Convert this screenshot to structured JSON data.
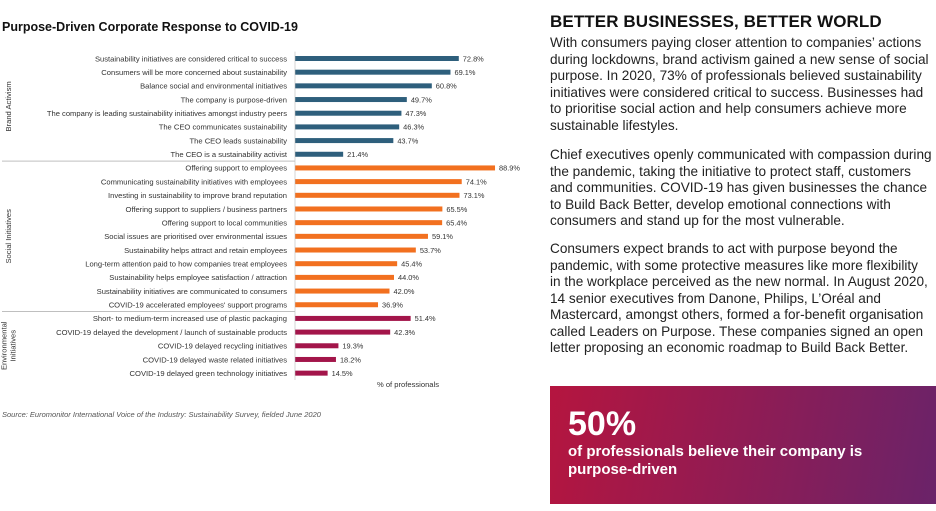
{
  "chart_title": "Purpose-Driven Corporate Response to COVID-19",
  "source": "Source: Euromonitor International Voice of the Industry: Sustainability Survey, fielded June 2020",
  "side": {
    "title": "BETTER BUSINESSES, BETTER WORLD",
    "paragraphs": [
      "With consumers paying closer attention to companies’ actions during lockdowns, brand activism gained a new sense of social purpose. In 2020, 73% of professionals believed sustainability initiatives were considered critical to success. Businesses had to prioritise social action and help consumers achieve more sustainable lifestyles.",
      "Chief executives openly communicated with compassion during the pandemic, taking the initiative to protect staff, customers and communities. COVID-19 has given businesses the chance to Build Back Better, develop emotional connections with consumers and stand up for the most vulnerable.",
      "Consumers expect brands to act with purpose beyond the pandemic, with some protective measures like more flexibility in the workplace perceived as the new normal. In August 2020, 14 senior executives from Danone, Philips, L’Oréal and Mastercard, amongst others, formed a for-benefit organisation called Leaders on Purpose. These companies signed an open letter proposing an economic roadmap to Build Back Better."
    ]
  },
  "callout": {
    "big": "50%",
    "text": "of professionals believe their company is purpose-driven",
    "gradient": [
      "#b5153f",
      "#6a2369"
    ]
  },
  "chart_data": {
    "type": "bar",
    "orientation": "horizontal",
    "title": "Purpose-Driven Corporate Response to COVID-19",
    "xlabel": "% of professionals",
    "xlim": [
      0,
      100
    ],
    "value_suffix": "%",
    "groups": [
      {
        "name": "Brand Activism",
        "color": "#2e5f7c",
        "categories": [
          "Sustainability initiatives are considered critical to success",
          "Consumers will be more concerned about sustainability",
          "Balance social and environmental initiatives",
          "The company is purpose-driven",
          "The company is leading sustainability initiatives amongst industry peers",
          "The CEO communicates sustainability",
          "The CEO leads sustainability",
          "The CEO is a sustainability activist"
        ],
        "values": [
          72.8,
          69.1,
          60.8,
          49.7,
          47.3,
          46.3,
          43.7,
          21.4
        ]
      },
      {
        "name": "Social Initiatives",
        "color": "#f2701f",
        "categories": [
          "Offering support to employees",
          "Communicating sustainability initiatives with employees",
          "Investing in sustainability to improve brand reputation",
          "Offering support to suppliers / business partners",
          "Offering support to local communities",
          "Social issues are prioritised over environmental issues",
          "Sustainability helps attract and retain employees",
          "Long-term attention paid to how companies treat employees",
          "Sustainability helps employee satisfaction / attraction",
          "Sustainability initiatives are communicated to consumers",
          "COVID-19 accelerated employees' support programs"
        ],
        "values": [
          88.9,
          74.1,
          73.1,
          65.5,
          65.4,
          59.1,
          53.7,
          45.4,
          44.0,
          42.0,
          36.9
        ]
      },
      {
        "name": "Environmental Initiatives",
        "color": "#a3154a",
        "categories": [
          "Short- to medium-term increased use of plastic packaging",
          "COVID-19 delayed the development / launch of sustainable products",
          "COVID-19 delayed recycling initiatives",
          "COVID-19 delayed waste related initiatives",
          "COVID-19 delayed green technology initiatives"
        ],
        "values": [
          51.4,
          42.3,
          19.3,
          18.2,
          14.5
        ]
      }
    ]
  }
}
